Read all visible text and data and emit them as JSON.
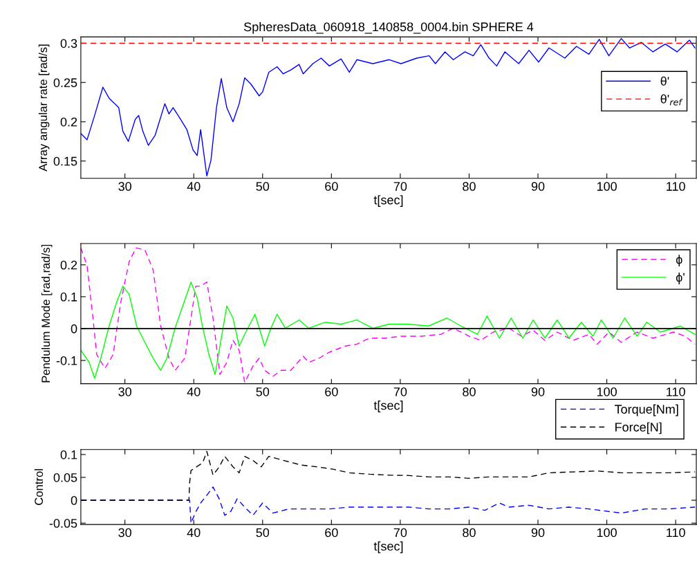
{
  "chart_data": [
    {
      "type": "line",
      "title": "SpheresData_060918_140858_0004.bin SPHERE 4",
      "xlabel": "t[sec]",
      "ylabel": "Array angular rate [rad/s]",
      "xlim": [
        23.6,
        113
      ],
      "xticks": [
        30,
        40,
        50,
        60,
        70,
        80,
        90,
        100,
        110
      ],
      "ylim": [
        0.128,
        0.308
      ],
      "yticks": [
        0.15,
        0.2,
        0.25,
        0.3
      ],
      "grid": false,
      "legend": "top right",
      "series": [
        {
          "name": "θ'",
          "color": "#0000ff",
          "line_style": "solid",
          "x": [
            23.6,
            24.5,
            25.6,
            26.8,
            27.7,
            29.1,
            29.7,
            30.5,
            31.5,
            32,
            32.6,
            33.4,
            34.4,
            35.8,
            36.4,
            37,
            38.1,
            39,
            39.9,
            40.5,
            41,
            41.9,
            42.5,
            43.3,
            44,
            44.8,
            45.7,
            46.6,
            47.4,
            48.3,
            49.5,
            50,
            50.9,
            52.1,
            53,
            54.1,
            55.3,
            55.9,
            57.3,
            58.5,
            59.7,
            61.4,
            62.6,
            63.7,
            66,
            68.4,
            70.1,
            72.4,
            74.2,
            75.1,
            76.5,
            77.7,
            79.4,
            80.6,
            81.7,
            82.9,
            84,
            85.2,
            87.2,
            88.7,
            90.1,
            91.6,
            93.9,
            95.6,
            97.4,
            98.9,
            100.3,
            102.1,
            103.3,
            105,
            106.7,
            108.5,
            110.2,
            112,
            112.8
          ],
          "values": [
            0.185,
            0.177,
            0.208,
            0.244,
            0.23,
            0.218,
            0.188,
            0.175,
            0.203,
            0.208,
            0.188,
            0.17,
            0.183,
            0.223,
            0.21,
            0.218,
            0.203,
            0.19,
            0.164,
            0.157,
            0.19,
            0.131,
            0.151,
            0.218,
            0.255,
            0.218,
            0.2,
            0.223,
            0.256,
            0.248,
            0.233,
            0.238,
            0.263,
            0.27,
            0.261,
            0.266,
            0.273,
            0.261,
            0.274,
            0.281,
            0.271,
            0.28,
            0.263,
            0.279,
            0.274,
            0.279,
            0.274,
            0.281,
            0.284,
            0.274,
            0.289,
            0.279,
            0.289,
            0.284,
            0.298,
            0.281,
            0.271,
            0.289,
            0.274,
            0.291,
            0.276,
            0.294,
            0.281,
            0.296,
            0.286,
            0.305,
            0.284,
            0.306,
            0.294,
            0.301,
            0.289,
            0.299,
            0.289,
            0.304,
            0.294
          ]
        },
        {
          "name": "θ'$_{ref}$",
          "color": "#ff0000",
          "line_style": "dashed",
          "x": [
            23.6,
            113
          ],
          "values": [
            0.3,
            0.3
          ]
        }
      ]
    },
    {
      "type": "line",
      "xlabel": "t[sec]",
      "ylabel": "Pendulum Mode [rad,rad/s]",
      "xlim": [
        23.6,
        113
      ],
      "xticks": [
        30,
        40,
        50,
        60,
        70,
        80,
        90,
        100,
        110
      ],
      "ylim": [
        -0.173,
        0.267
      ],
      "yticks": [
        -0.1,
        0,
        0.1,
        0.2
      ],
      "grid": false,
      "legend": "top right",
      "ref_lines": [
        {
          "axis": "y",
          "value": 0,
          "color": "#000000"
        }
      ],
      "series": [
        {
          "name": "ϕ",
          "color": "#ff00ff",
          "line_style": "dashed",
          "x": [
            23.6,
            24.5,
            25.3,
            25.9,
            27.1,
            28.3,
            29.4,
            30.6,
            31.6,
            32.9,
            34.1,
            35.2,
            36.4,
            37.3,
            38.7,
            39.6,
            40.3,
            41,
            41.9,
            42.8,
            43.8,
            44.8,
            45.7,
            46.6,
            47.4,
            48.6,
            49.5,
            50.3,
            51.5,
            52.7,
            54.1,
            55.9,
            56.7,
            58.2,
            59.7,
            62,
            63.7,
            65.5,
            67.8,
            70.1,
            73,
            75.9,
            77.7,
            80,
            81.7,
            83.5,
            85.8,
            87.6,
            89.3,
            91,
            92.8,
            95.1,
            97.4,
            98.6,
            100.3,
            102.1,
            104.4,
            106.7,
            109.7,
            111.4,
            112.8
          ],
          "values": [
            0.253,
            0.198,
            0.045,
            -0.081,
            -0.125,
            -0.081,
            0.083,
            0.209,
            0.253,
            0.247,
            0.184,
            0.008,
            -0.093,
            -0.131,
            -0.093,
            0.033,
            0.133,
            0.133,
            0.146,
            0.033,
            -0.144,
            -0.106,
            -0.037,
            -0.068,
            -0.169,
            -0.118,
            -0.093,
            -0.131,
            -0.15,
            -0.131,
            -0.131,
            -0.087,
            -0.106,
            -0.093,
            -0.074,
            -0.055,
            -0.049,
            -0.03,
            -0.03,
            -0.024,
            -0.024,
            -0.018,
            0.001,
            -0.024,
            -0.037,
            -0.011,
            0.001,
            -0.024,
            -0.005,
            -0.037,
            -0.011,
            -0.037,
            -0.018,
            -0.049,
            -0.011,
            -0.043,
            -0.011,
            -0.03,
            -0.011,
            -0.024,
            -0.049
          ]
        },
        {
          "name": "ϕ'",
          "color": "#00ff00",
          "line_style": "solid",
          "x": [
            23.6,
            24.8,
            25.6,
            26.5,
            27.7,
            28.8,
            29.7,
            30.6,
            31.7,
            32.9,
            34.1,
            35.2,
            36.1,
            37.3,
            38.5,
            39.6,
            40.5,
            41.3,
            42.2,
            43.1,
            43.9,
            44.8,
            45.7,
            46.6,
            47.4,
            48.9,
            50.3,
            51.2,
            52.1,
            53.3,
            55.3,
            56.7,
            59.1,
            61.4,
            63.7,
            66,
            68.4,
            71.2,
            74.1,
            76.8,
            78.8,
            81.2,
            82.6,
            84.4,
            86.1,
            87.8,
            89.3,
            91,
            92.8,
            94.5,
            96.3,
            98,
            99.2,
            100.9,
            102.6,
            104.4,
            105.8,
            107.8,
            110.7,
            112.8
          ],
          "values": [
            -0.068,
            -0.106,
            -0.156,
            -0.093,
            0.008,
            0.083,
            0.133,
            0.108,
            0.008,
            -0.043,
            -0.093,
            -0.131,
            -0.093,
            0.003,
            0.077,
            0.146,
            0.096,
            0.003,
            -0.081,
            -0.144,
            -0.043,
            0.071,
            0.033,
            -0.055,
            -0.018,
            0.045,
            -0.055,
            0.001,
            0.045,
            0.001,
            0.027,
            0.001,
            0.02,
            0.014,
            0.027,
            0.001,
            0.014,
            0.014,
            0.008,
            0.033,
            0.008,
            -0.018,
            0.039,
            -0.03,
            0.033,
            -0.03,
            0.027,
            -0.03,
            0.027,
            -0.03,
            0.02,
            -0.024,
            0.027,
            -0.03,
            0.033,
            -0.024,
            0.02,
            -0.011,
            0.008,
            -0.018
          ]
        }
      ]
    },
    {
      "type": "line",
      "xlabel": "t[sec]",
      "ylabel": "Control",
      "xlim": [
        23.6,
        113
      ],
      "xticks": [
        30,
        40,
        50,
        60,
        70,
        80,
        90,
        100,
        110
      ],
      "ylim": [
        -0.053,
        0.111
      ],
      "yticks": [
        -0.05,
        0,
        0.05,
        0.1
      ],
      "grid": false,
      "legend": "top right",
      "series": [
        {
          "name": "Torque[Nm]",
          "color": "#0000ff",
          "line_style": "dashed",
          "x": [
            23.6,
            39.4,
            39.6,
            40.2,
            41,
            41.9,
            42.8,
            43.7,
            44.5,
            45.4,
            46.3,
            47.4,
            48.6,
            50,
            51.5,
            53.8,
            56.7,
            59.7,
            62.6,
            65.5,
            68.4,
            71.3,
            74.2,
            77.1,
            80,
            82.3,
            84.4,
            85.8,
            88.7,
            91.6,
            94.5,
            97.4,
            102.1,
            105.6,
            109.1,
            112.8
          ],
          "values": [
            0,
            0,
            -0.05,
            -0.028,
            -0.006,
            0.011,
            0.029,
            0.003,
            -0.033,
            -0.024,
            0.003,
            -0.015,
            -0.033,
            -0.006,
            -0.028,
            -0.019,
            -0.019,
            -0.019,
            -0.015,
            -0.015,
            -0.015,
            -0.015,
            -0.019,
            -0.019,
            -0.015,
            -0.022,
            -0.006,
            -0.015,
            -0.011,
            -0.019,
            -0.015,
            -0.019,
            -0.028,
            -0.019,
            -0.019,
            -0.015
          ]
        },
        {
          "name": "Force[N]",
          "color": "#000000",
          "line_style": "dashed",
          "x": [
            23.6,
            39.3,
            39.4,
            39.6,
            40.5,
            41.3,
            41.9,
            42.8,
            43.7,
            44.5,
            45.7,
            46.6,
            47.4,
            48.6,
            49.8,
            50.9,
            52.1,
            53.8,
            55.6,
            57.9,
            60.2,
            62.6,
            65.5,
            68.4,
            71.3,
            74.2,
            77.1,
            80,
            82.9,
            85.8,
            88.7,
            91.6,
            95.1,
            98.6,
            102.1,
            105.6,
            109.1,
            112.8
          ],
          "values": [
            0,
            0,
            0.038,
            0.065,
            0.074,
            0.082,
            0.107,
            0.055,
            0.073,
            0.096,
            0.073,
            0.06,
            0.096,
            0.087,
            0.073,
            0.096,
            0.091,
            0.084,
            0.077,
            0.073,
            0.068,
            0.06,
            0.057,
            0.055,
            0.054,
            0.051,
            0.051,
            0.048,
            0.051,
            0.051,
            0.051,
            0.06,
            0.062,
            0.064,
            0.06,
            0.06,
            0.06,
            0.062
          ]
        }
      ]
    }
  ]
}
